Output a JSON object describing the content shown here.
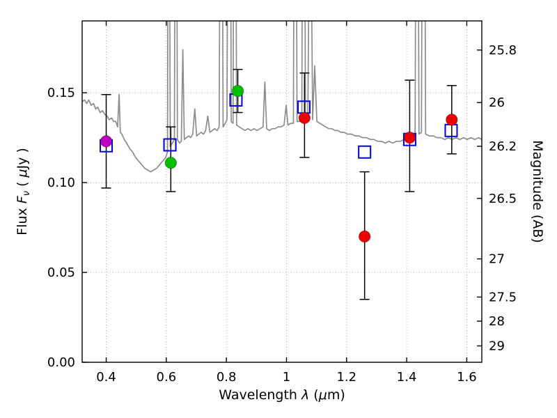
{
  "figure": {
    "background": "#ffffff",
    "frame_color": "#000000",
    "grid_color": "#aaaaaa"
  },
  "chart_data": {
    "type": "line+scatter",
    "title": "",
    "xlabel_parts": [
      {
        "t": "Wavelength  "
      },
      {
        "t": "λ",
        "i": true
      },
      {
        "t": " ("
      },
      {
        "t": "μ",
        "i": true
      },
      {
        "t": "m)"
      }
    ],
    "ylabel_left_parts": [
      {
        "t": "Flux  "
      },
      {
        "t": "F",
        "i": true
      },
      {
        "t": "ν",
        "i": true,
        "sub": true
      },
      {
        "t": "  ( "
      },
      {
        "t": "μ",
        "i": true
      },
      {
        "t": "Jy )"
      }
    ],
    "ylabel_right": "Magnitude (AB)",
    "xlim": [
      0.32,
      1.65
    ],
    "ylim_flux": [
      0.0,
      0.19
    ],
    "ab_zeropoint": 23.9,
    "x_ticks": [
      {
        "v": 0.4,
        "label": "0.4"
      },
      {
        "v": 0.6,
        "label": "0.6"
      },
      {
        "v": 0.8,
        "label": "0.8"
      },
      {
        "v": 1.0,
        "label": "1"
      },
      {
        "v": 1.2,
        "label": "1.2"
      },
      {
        "v": 1.4,
        "label": "1.4"
      },
      {
        "v": 1.6,
        "label": "1.6"
      }
    ],
    "y_ticks_left": [
      {
        "v": 0.0,
        "label": "0.00"
      },
      {
        "v": 0.05,
        "label": "0.05"
      },
      {
        "v": 0.1,
        "label": "0.10"
      },
      {
        "v": 0.15,
        "label": "0.15"
      }
    ],
    "y_ticks_right_mag": [
      {
        "v": 25.8,
        "label": "25.8"
      },
      {
        "v": 26.0,
        "label": "26"
      },
      {
        "v": 26.2,
        "label": "26.2"
      },
      {
        "v": 26.5,
        "label": "26.5"
      },
      {
        "v": 27.0,
        "label": "27"
      },
      {
        "v": 27.5,
        "label": "27.5"
      },
      {
        "v": 28.0,
        "label": "28"
      },
      {
        "v": 29.0,
        "label": "29"
      }
    ],
    "grid": {
      "show": true,
      "color": "#aaaaaa",
      "style": "dotted"
    },
    "spectrum": {
      "name": "model-spectrum",
      "color": "#8c8c8c",
      "points": [
        [
          0.32,
          0.145
        ],
        [
          0.328,
          0.146
        ],
        [
          0.335,
          0.144
        ],
        [
          0.342,
          0.146
        ],
        [
          0.35,
          0.143
        ],
        [
          0.358,
          0.144
        ],
        [
          0.365,
          0.141
        ],
        [
          0.372,
          0.142
        ],
        [
          0.38,
          0.139
        ],
        [
          0.388,
          0.14
        ],
        [
          0.395,
          0.138
        ],
        [
          0.403,
          0.137
        ],
        [
          0.41,
          0.135
        ],
        [
          0.418,
          0.136
        ],
        [
          0.425,
          0.134
        ],
        [
          0.432,
          0.134
        ],
        [
          0.438,
          0.131
        ],
        [
          0.443,
          0.149
        ],
        [
          0.447,
          0.128
        ],
        [
          0.452,
          0.127
        ],
        [
          0.46,
          0.124
        ],
        [
          0.468,
          0.122
        ],
        [
          0.478,
          0.119
        ],
        [
          0.488,
          0.117
        ],
        [
          0.498,
          0.114
        ],
        [
          0.508,
          0.112
        ],
        [
          0.518,
          0.11
        ],
        [
          0.528,
          0.108
        ],
        [
          0.538,
          0.107
        ],
        [
          0.548,
          0.106
        ],
        [
          0.558,
          0.107
        ],
        [
          0.568,
          0.108
        ],
        [
          0.578,
          0.11
        ],
        [
          0.588,
          0.112
        ],
        [
          0.598,
          0.114
        ],
        [
          0.604,
          0.117
        ],
        [
          0.608,
          0.42
        ],
        [
          0.613,
          0.12
        ],
        [
          0.62,
          0.122
        ],
        [
          0.627,
          0.124
        ],
        [
          0.632,
          0.44
        ],
        [
          0.637,
          0.124
        ],
        [
          0.644,
          0.122
        ],
        [
          0.65,
          0.123
        ],
        [
          0.655,
          0.174
        ],
        [
          0.66,
          0.124
        ],
        [
          0.667,
          0.125
        ],
        [
          0.674,
          0.126
        ],
        [
          0.681,
          0.125
        ],
        [
          0.688,
          0.127
        ],
        [
          0.695,
          0.141
        ],
        [
          0.701,
          0.126
        ],
        [
          0.708,
          0.127
        ],
        [
          0.716,
          0.128
        ],
        [
          0.724,
          0.127
        ],
        [
          0.731,
          0.129
        ],
        [
          0.738,
          0.137
        ],
        [
          0.745,
          0.128
        ],
        [
          0.753,
          0.129
        ],
        [
          0.761,
          0.13
        ],
        [
          0.769,
          0.129
        ],
        [
          0.776,
          0.131
        ],
        [
          0.783,
          0.45
        ],
        [
          0.789,
          0.131
        ],
        [
          0.796,
          0.133
        ],
        [
          0.802,
          0.135
        ],
        [
          0.81,
          0.48
        ],
        [
          0.816,
          0.134
        ],
        [
          0.822,
          0.133
        ],
        [
          0.828,
          0.46
        ],
        [
          0.834,
          0.132
        ],
        [
          0.843,
          0.131
        ],
        [
          0.852,
          0.13
        ],
        [
          0.862,
          0.129
        ],
        [
          0.872,
          0.13
        ],
        [
          0.882,
          0.129
        ],
        [
          0.892,
          0.13
        ],
        [
          0.902,
          0.129
        ],
        [
          0.912,
          0.13
        ],
        [
          0.922,
          0.131
        ],
        [
          0.928,
          0.156
        ],
        [
          0.934,
          0.13
        ],
        [
          0.943,
          0.129
        ],
        [
          0.952,
          0.13
        ],
        [
          0.962,
          0.13
        ],
        [
          0.972,
          0.131
        ],
        [
          0.982,
          0.131
        ],
        [
          0.992,
          0.132
        ],
        [
          0.999,
          0.143
        ],
        [
          1.005,
          0.132
        ],
        [
          1.014,
          0.133
        ],
        [
          1.023,
          0.133
        ],
        [
          1.029,
          0.44
        ],
        [
          1.035,
          0.134
        ],
        [
          1.044,
          0.134
        ],
        [
          1.051,
          0.135
        ],
        [
          1.057,
          0.46
        ],
        [
          1.063,
          0.135
        ],
        [
          1.071,
          0.136
        ],
        [
          1.079,
          0.3
        ],
        [
          1.087,
          0.135
        ],
        [
          1.094,
          0.165
        ],
        [
          1.101,
          0.134
        ],
        [
          1.111,
          0.133
        ],
        [
          1.121,
          0.132
        ],
        [
          1.131,
          0.131
        ],
        [
          1.141,
          0.13
        ],
        [
          1.151,
          0.13
        ],
        [
          1.161,
          0.129
        ],
        [
          1.171,
          0.129
        ],
        [
          1.181,
          0.128
        ],
        [
          1.191,
          0.128
        ],
        [
          1.203,
          0.127
        ],
        [
          1.216,
          0.127
        ],
        [
          1.229,
          0.126
        ],
        [
          1.241,
          0.126
        ],
        [
          1.253,
          0.125
        ],
        [
          1.266,
          0.125
        ],
        [
          1.279,
          0.124
        ],
        [
          1.291,
          0.124
        ],
        [
          1.303,
          0.123
        ],
        [
          1.316,
          0.123
        ],
        [
          1.329,
          0.122
        ],
        [
          1.341,
          0.123
        ],
        [
          1.353,
          0.122
        ],
        [
          1.366,
          0.123
        ],
        [
          1.379,
          0.123
        ],
        [
          1.391,
          0.124
        ],
        [
          1.403,
          0.124
        ],
        [
          1.416,
          0.125
        ],
        [
          1.428,
          0.126
        ],
        [
          1.434,
          0.44
        ],
        [
          1.441,
          0.127
        ],
        [
          1.449,
          0.128
        ],
        [
          1.456,
          0.46
        ],
        [
          1.463,
          0.127
        ],
        [
          1.476,
          0.126
        ],
        [
          1.489,
          0.126
        ],
        [
          1.501,
          0.125
        ],
        [
          1.514,
          0.125
        ],
        [
          1.527,
          0.124
        ],
        [
          1.539,
          0.125
        ],
        [
          1.551,
          0.124
        ],
        [
          1.564,
          0.125
        ],
        [
          1.577,
          0.124
        ],
        [
          1.589,
          0.125
        ],
        [
          1.601,
          0.124
        ],
        [
          1.614,
          0.125
        ],
        [
          1.627,
          0.124
        ],
        [
          1.639,
          0.125
        ],
        [
          1.65,
          0.124
        ]
      ]
    },
    "observed_photometry": [
      {
        "x": 0.4,
        "y": 0.123,
        "err_lo": 0.026,
        "err_hi": 0.026,
        "color": "#bf00bf"
      },
      {
        "x": 0.615,
        "y": 0.111,
        "err_lo": 0.016,
        "err_hi": 0.02,
        "color": "#00c000"
      },
      {
        "x": 0.838,
        "y": 0.151,
        "err_lo": 0.012,
        "err_hi": 0.012,
        "color": "#00c000"
      },
      {
        "x": 1.06,
        "y": 0.136,
        "err_lo": 0.022,
        "err_hi": 0.025,
        "color": "#ee0000"
      },
      {
        "x": 1.26,
        "y": 0.07,
        "err_lo": 0.035,
        "err_hi": 0.036,
        "color": "#ee0000"
      },
      {
        "x": 1.41,
        "y": 0.125,
        "err_lo": 0.03,
        "err_hi": 0.032,
        "color": "#ee0000"
      },
      {
        "x": 1.55,
        "y": 0.135,
        "err_lo": 0.019,
        "err_hi": 0.019,
        "color": "#ee0000"
      }
    ],
    "model_photometry": {
      "color": "#0000dd",
      "points": [
        [
          0.4,
          0.1205
        ],
        [
          0.612,
          0.121
        ],
        [
          0.832,
          0.146
        ],
        [
          1.058,
          0.142
        ],
        [
          1.26,
          0.117
        ],
        [
          1.41,
          0.124
        ],
        [
          1.548,
          0.129
        ]
      ]
    }
  }
}
